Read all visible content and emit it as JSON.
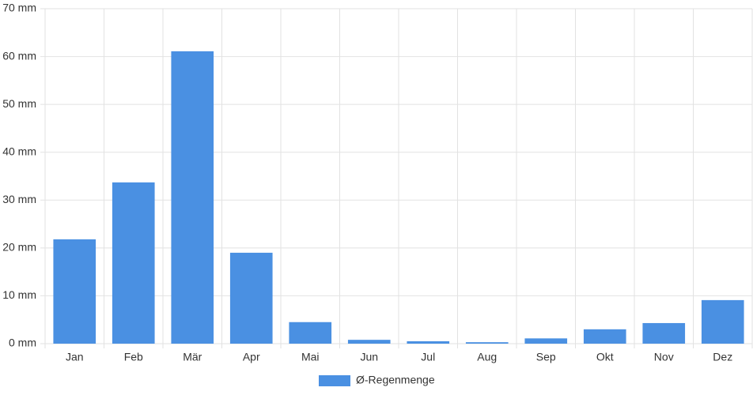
{
  "chart_data": {
    "type": "bar",
    "categories": [
      "Jan",
      "Feb",
      "Mär",
      "Apr",
      "Mai",
      "Jun",
      "Jul",
      "Aug",
      "Sep",
      "Okt",
      "Nov",
      "Dez"
    ],
    "series": [
      {
        "name": "Ø-Regenmenge",
        "color": "#4a90e2",
        "values": [
          21.8,
          33.7,
          61.1,
          19.0,
          4.5,
          0.8,
          0.5,
          0.3,
          1.1,
          3.0,
          4.3,
          9.1
        ]
      }
    ],
    "ylim": [
      0,
      70
    ],
    "yticks": [
      {
        "value": 0,
        "label": "0 mm"
      },
      {
        "value": 10,
        "label": "10 mm"
      },
      {
        "value": 20,
        "label": "20 mm"
      },
      {
        "value": 30,
        "label": "30 mm"
      },
      {
        "value": 40,
        "label": "40 mm"
      },
      {
        "value": 50,
        "label": "50 mm"
      },
      {
        "value": 60,
        "label": "60 mm"
      },
      {
        "value": 70,
        "label": "70 mm"
      }
    ],
    "grid": true,
    "legend": "bottom"
  }
}
